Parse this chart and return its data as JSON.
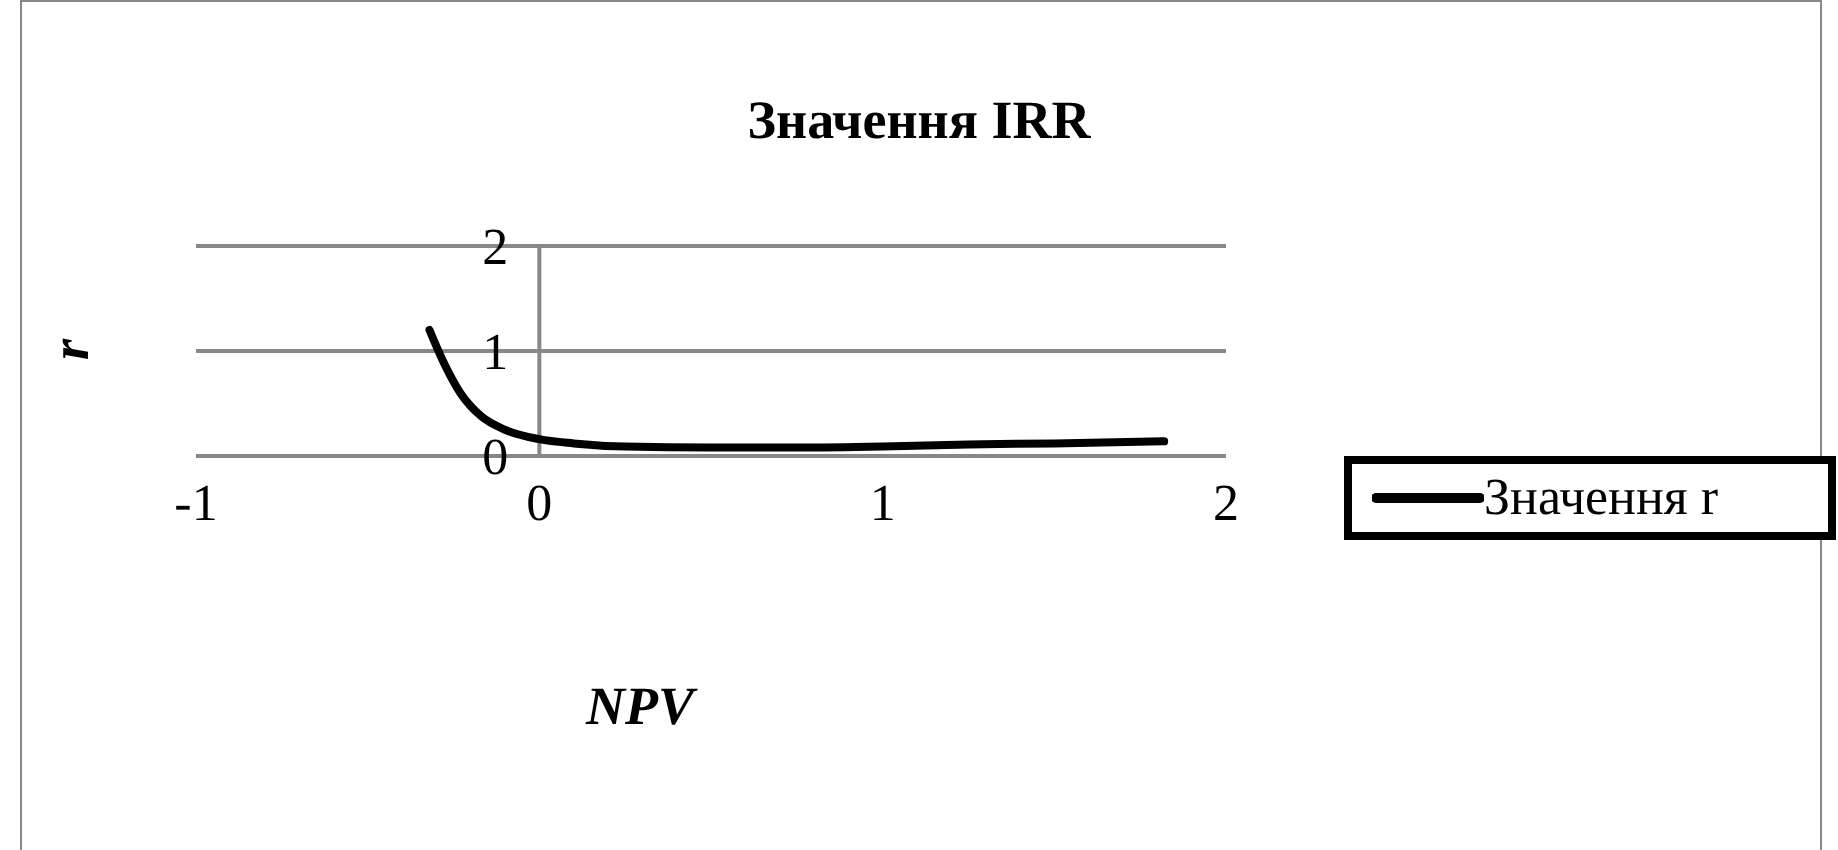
{
  "chart_data": {
    "type": "line",
    "title": "Значення IRR",
    "xlabel": "NPV",
    "ylabel": "r",
    "xlim": [
      -1,
      2
    ],
    "xticks": [
      -1,
      0,
      1,
      2
    ],
    "ylim": [
      0,
      2
    ],
    "yticks": [
      0,
      1,
      2
    ],
    "grid": "y",
    "legend": "right",
    "marker": "none",
    "line_style": "solid",
    "series": [
      {
        "name": "Значення r",
        "color": "#000000",
        "x": [
          -0.32,
          -0.28,
          -0.23,
          -0.17,
          -0.1,
          0,
          0.1,
          0.25,
          0.5,
          0.75,
          1,
          1.25,
          1.5,
          1.82
        ],
        "values": [
          1.2,
          0.9,
          0.6,
          0.38,
          0.25,
          0.16,
          0.12,
          0.09,
          0.08,
          0.08,
          0.09,
          0.11,
          0.12,
          0.14
        ]
      }
    ]
  }
}
